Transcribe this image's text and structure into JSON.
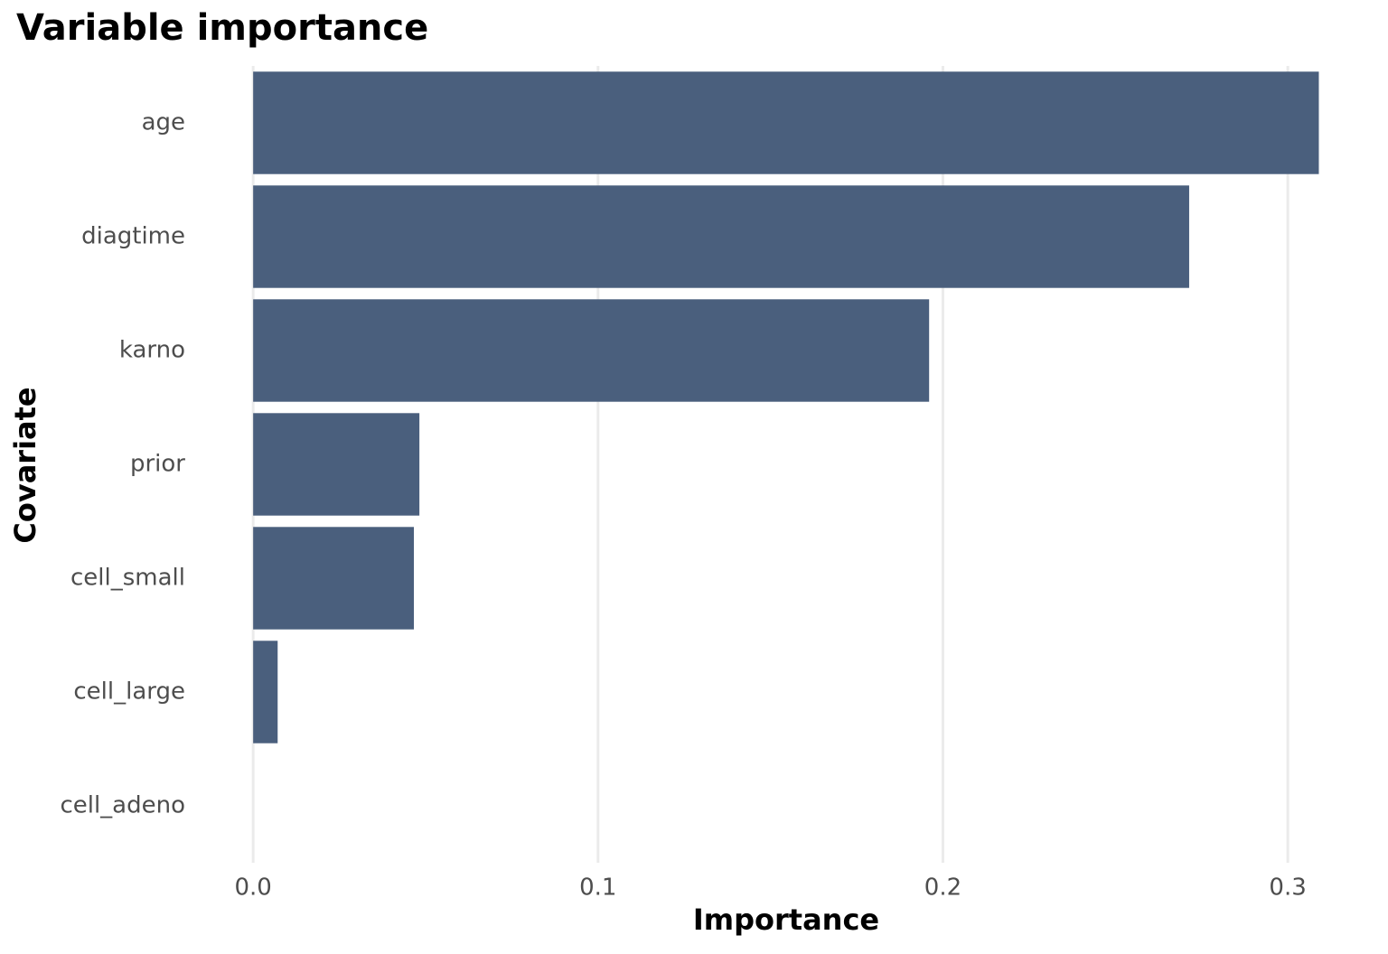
{
  "chart_data": {
    "type": "bar",
    "orientation": "horizontal",
    "title": "Variable importance",
    "x_label": "Importance",
    "y_label": "Covariate",
    "categories": [
      "age",
      "diagtime",
      "karno",
      "prior",
      "cell_small",
      "cell_large",
      "cell_adeno"
    ],
    "values": [
      0.309,
      0.2714,
      0.196,
      0.0482,
      0.0466,
      0.0071,
      0
    ],
    "color": "#4a5f7d",
    "xlim": [
      -0.0155,
      0.3246
    ],
    "xticks": [
      {
        "value": 0,
        "label": "0.0"
      },
      0.1,
      0.2,
      0.3
    ],
    "grid": true
  }
}
